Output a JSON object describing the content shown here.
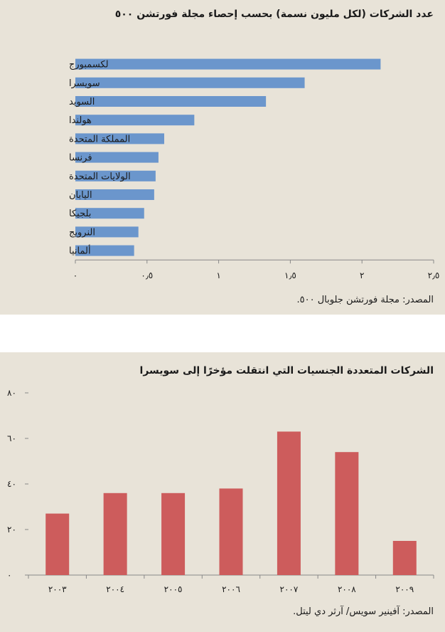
{
  "chart_data": [
    {
      "type": "bar",
      "orientation": "horizontal",
      "title": "عدد الشركات (لكل مليون نسمة) بحسب إحصاء مجلة فورتشن ٥٠٠",
      "source": "المصدر: مجلة فورتشن جلوبال ٥٠٠.",
      "categories": [
        "لكسمبورج",
        "سويسرا",
        "السويد",
        "هولندا",
        "المملكة المتحدة",
        "فرنسا",
        "الولايات المتحدة",
        "اليابان",
        "بلجيكا",
        "النرويج",
        "ألمانيا"
      ],
      "values": [
        2.13,
        1.6,
        1.33,
        0.83,
        0.62,
        0.58,
        0.56,
        0.55,
        0.48,
        0.44,
        0.41
      ],
      "xlim": [
        0,
        2.5
      ],
      "xticks": [
        "٠",
        "٠٫٥",
        "١",
        "١٫٥",
        "٢",
        "٢٫٥"
      ],
      "color": "#6b96cc",
      "grid": false
    },
    {
      "type": "bar",
      "orientation": "vertical",
      "title": "الشركات المتعددة الجنسيات التي انتقلت مؤخرًا إلى سويسرا",
      "source": "المصدر: آفينير سويس/ آرثر دي ليتل.",
      "categories": [
        "٢٠٠٣",
        "٢٠٠٤",
        "٢٠٠٥",
        "٢٠٠٦",
        "٢٠٠٧",
        "٢٠٠٨",
        "٢٠٠٩"
      ],
      "values": [
        27,
        36,
        36,
        38,
        63,
        54,
        15
      ],
      "ylim": [
        0,
        80
      ],
      "yticks": [
        "٠",
        "٢٠",
        "٤٠",
        "٦٠",
        "٨٠"
      ],
      "color": "#cd5c5c",
      "grid": false
    }
  ]
}
